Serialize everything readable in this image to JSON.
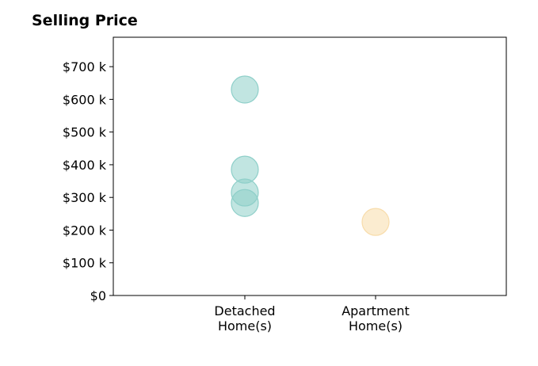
{
  "chart_data": {
    "type": "scatter",
    "title": "Selling Price",
    "xlabel": "",
    "ylabel": "",
    "categories": [
      {
        "lines": [
          "Detached",
          "Home(s)"
        ],
        "color": "#8ecfc9"
      },
      {
        "lines": [
          "Apartment",
          "Home(s)"
        ],
        "color": "#f8dcaa"
      }
    ],
    "points": [
      {
        "category": 0,
        "y": 630000
      },
      {
        "category": 0,
        "y": 385000
      },
      {
        "category": 0,
        "y": 315000
      },
      {
        "category": 0,
        "y": 283000
      },
      {
        "category": 1,
        "y": 225000
      }
    ],
    "ylim": [
      0,
      790000
    ],
    "yticks": [
      0,
      100000,
      200000,
      300000,
      400000,
      500000,
      600000,
      700000
    ],
    "ytick_labels": [
      "$0",
      "$100 k",
      "$200 k",
      "$300 k",
      "$400 k",
      "$500 k",
      "$600 k",
      "$700 k"
    ],
    "marker_opacity": 0.55,
    "grid": false,
    "legend": "none"
  }
}
